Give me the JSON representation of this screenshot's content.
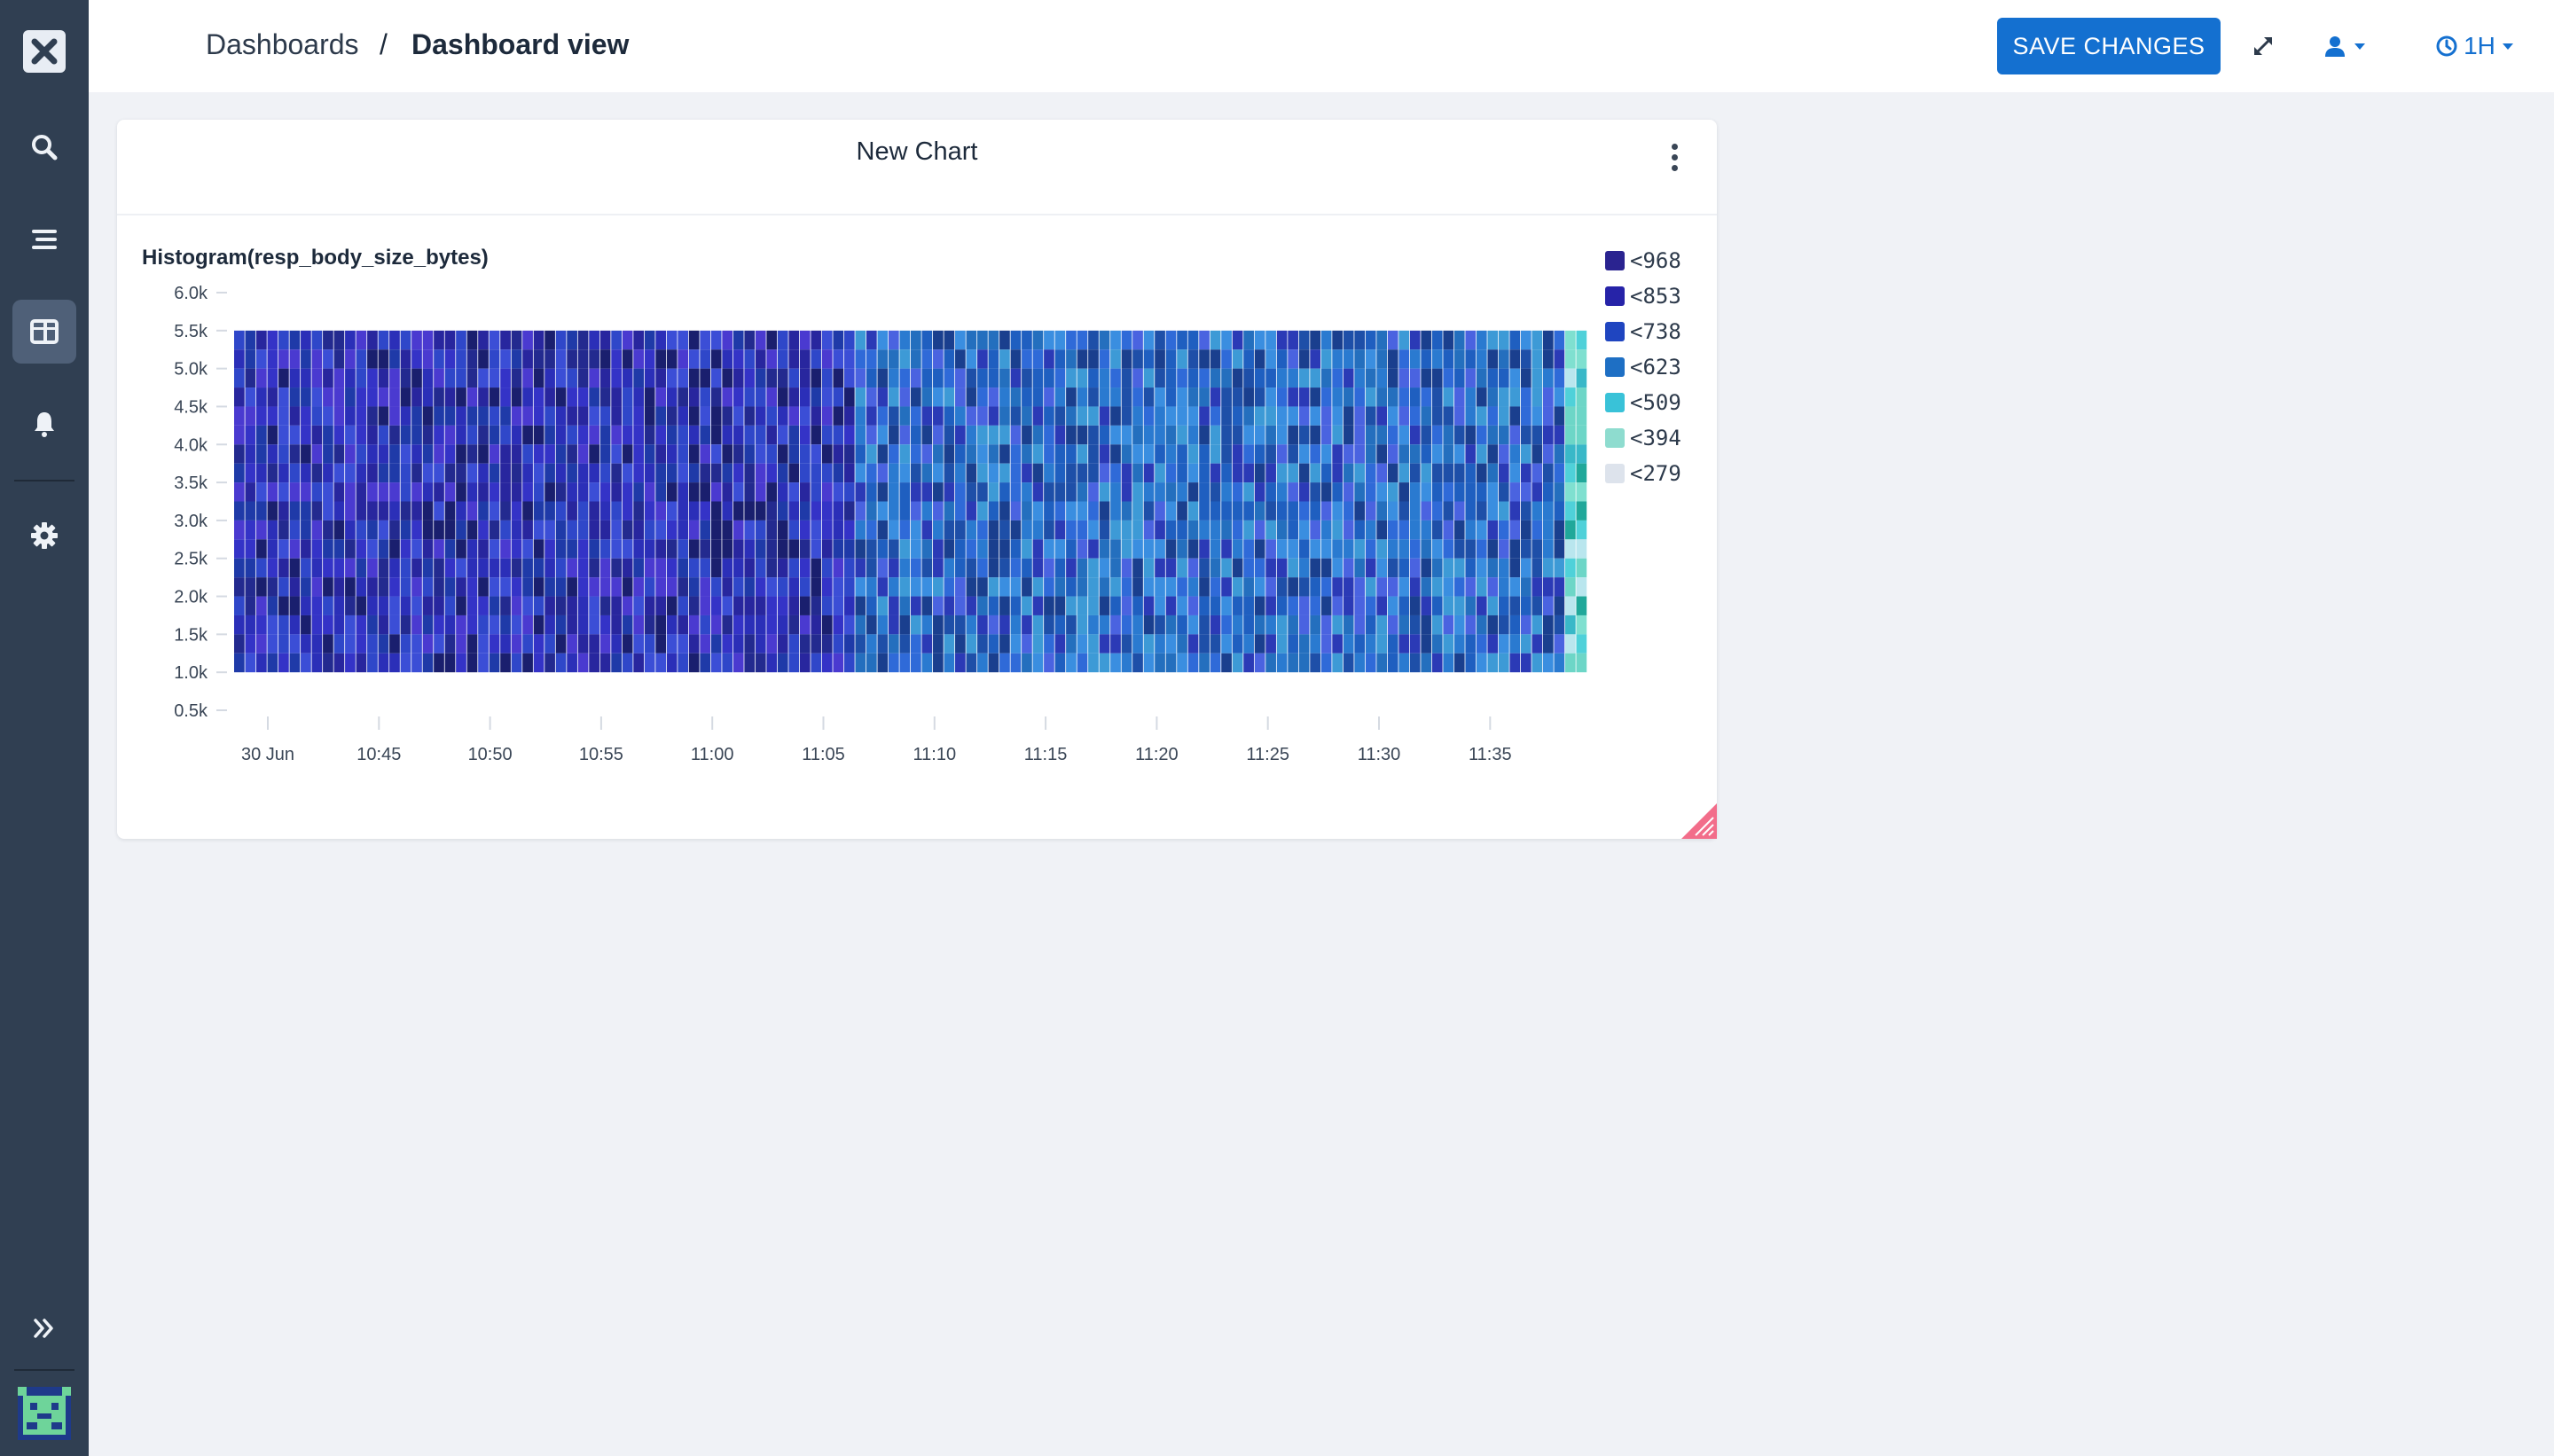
{
  "breadcrumb": {
    "parent": "Dashboards",
    "separator": "/",
    "current": "Dashboard view"
  },
  "toolbar": {
    "save_label": "SAVE CHANGES",
    "time_range": "1H"
  },
  "sidebar": {
    "items": [
      {
        "icon": "search-icon",
        "active": false
      },
      {
        "icon": "list-icon",
        "active": false
      },
      {
        "icon": "dashboard-icon",
        "active": true
      },
      {
        "icon": "bell-icon",
        "active": false
      },
      {
        "icon": "gear-icon",
        "active": false
      }
    ]
  },
  "card": {
    "title": "New Chart"
  },
  "colors": {
    "primary": "#1470d0",
    "add": "#7b5cd6",
    "sidebar": "#303f52"
  },
  "chart_data": {
    "type": "heatmap",
    "title": "Histogram(resp_body_size_bytes)",
    "y_ticks": [
      "6.0k",
      "5.5k",
      "5.0k",
      "4.5k",
      "4.0k",
      "3.5k",
      "3.0k",
      "2.5k",
      "2.0k",
      "1.5k",
      "1.0k",
      "0.5k"
    ],
    "ylim": [
      500,
      6000
    ],
    "x_ticks": [
      "30 Jun",
      "10:45",
      "10:50",
      "10:55",
      "11:00",
      "11:05",
      "11:10",
      "11:15",
      "11:20",
      "11:25",
      "11:30",
      "11:35"
    ],
    "data_y_range": [
      1000,
      5500
    ],
    "legend": [
      {
        "label": "<968",
        "color": "#2a2390"
      },
      {
        "label": "<853",
        "color": "#2623a8"
      },
      {
        "label": "<738",
        "color": "#1f45c0"
      },
      {
        "label": "<623",
        "color": "#1e6fc4"
      },
      {
        "label": "<509",
        "color": "#39c2d8"
      },
      {
        "label": "<394",
        "color": "#8edccf"
      },
      {
        "label": "<279",
        "color": "#dde3ec"
      }
    ],
    "legend_position": "right",
    "grid": false
  }
}
